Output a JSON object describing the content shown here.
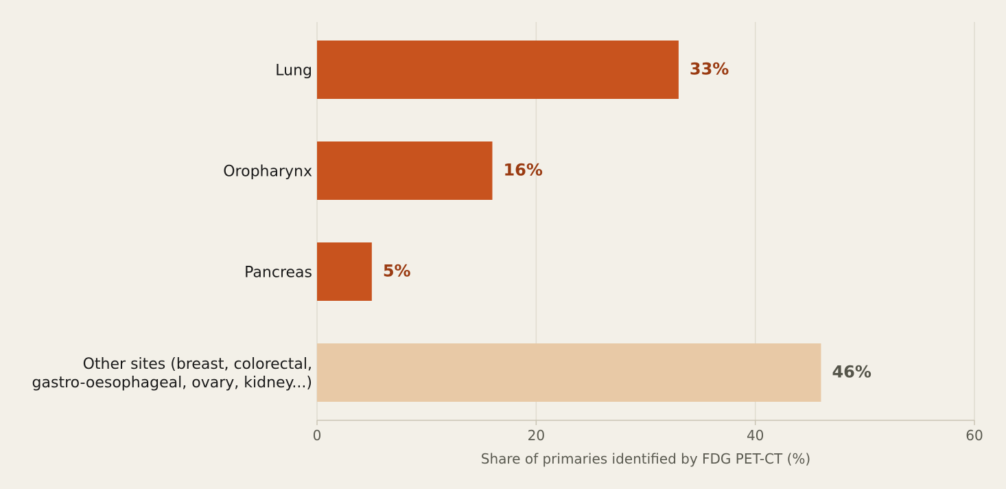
{
  "chart_data": {
    "type": "bar",
    "orientation": "horizontal",
    "categories": [
      [
        "Lung"
      ],
      [
        "Oropharynx"
      ],
      [
        "Pancreas"
      ],
      [
        "Other sites (breast, colorectal,",
        "gastro-oesophageal, ovary, kidney...)"
      ]
    ],
    "values": [
      33,
      16,
      5,
      46
    ],
    "value_labels": [
      "33%",
      "16%",
      "5%",
      "46%"
    ],
    "bar_colors": [
      "#c8531e",
      "#c8531e",
      "#c8531e",
      "#e8c9a6"
    ],
    "label_colors": [
      "#9a3b12",
      "#9a3b12",
      "#9a3b12",
      "#55554a"
    ],
    "xlabel": "Share of primaries identified by FDG PET-CT (%)",
    "xlim": [
      0,
      60
    ],
    "xticks": [
      0,
      20,
      40,
      60
    ],
    "grid": true,
    "colors": {
      "background": "#f3f0e8",
      "grid": "#e0dccf",
      "axis": "#c9c4b4"
    }
  }
}
